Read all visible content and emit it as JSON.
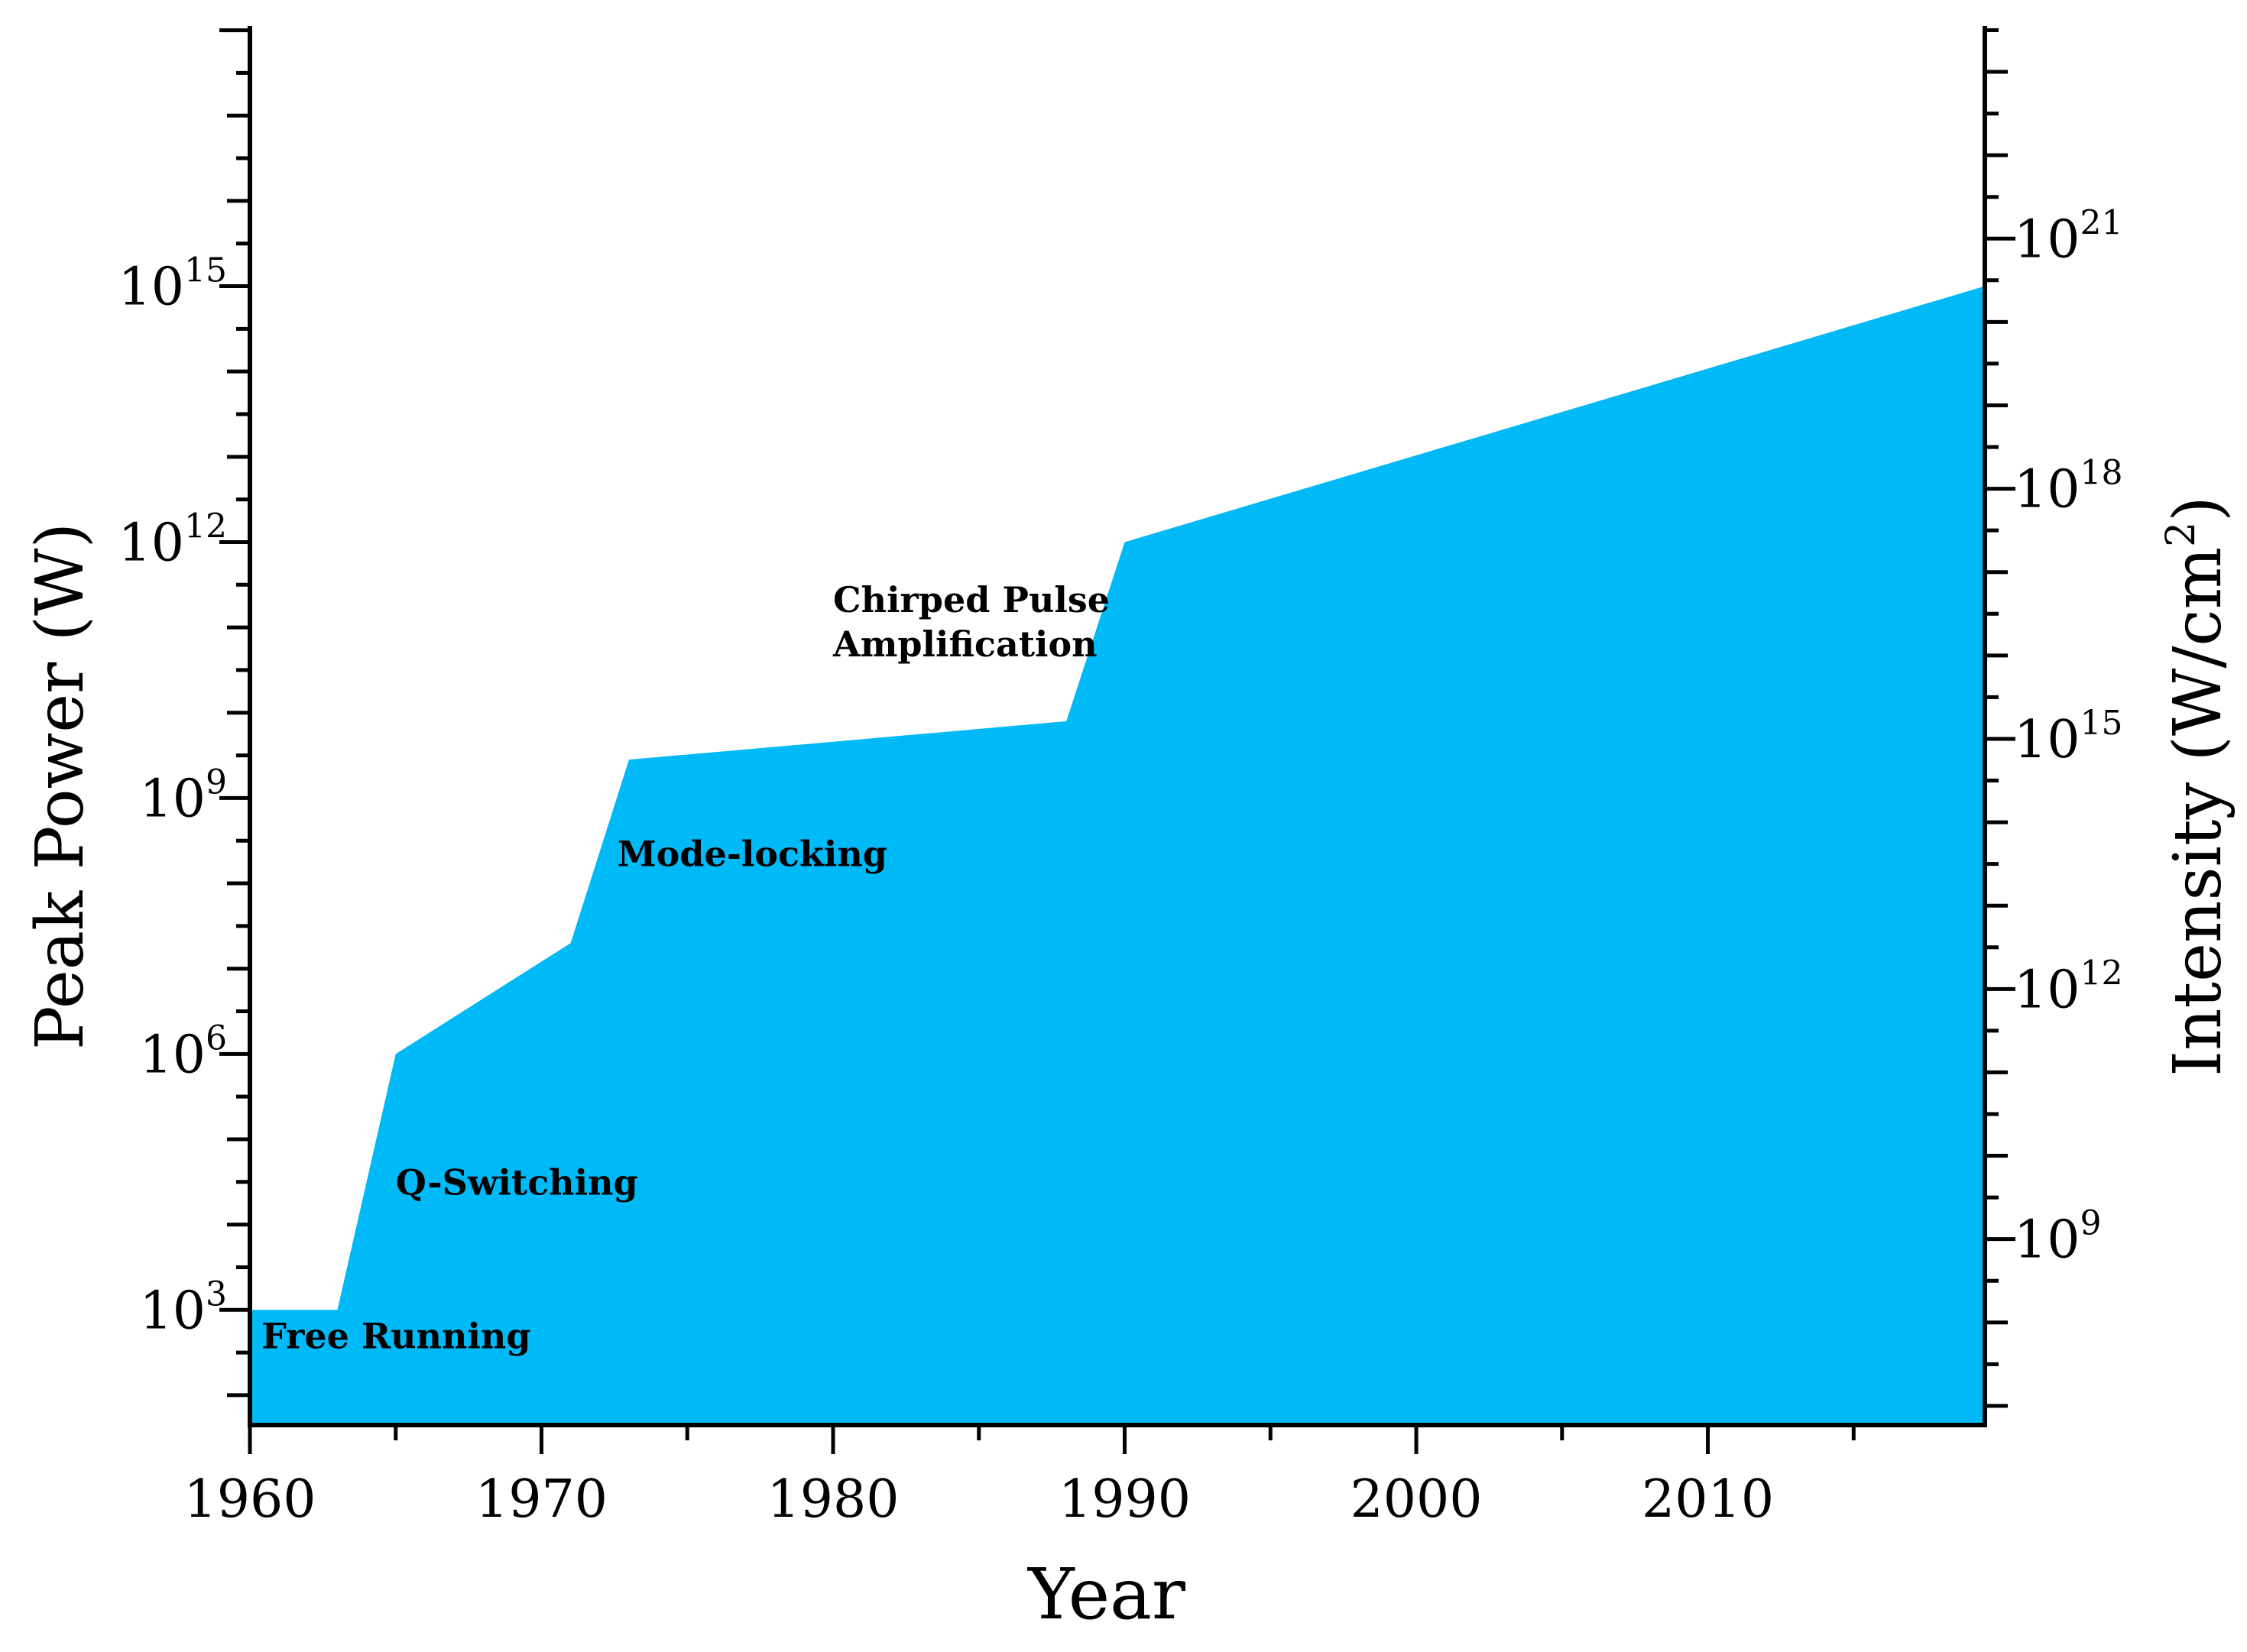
{
  "chart_data": {
    "type": "area",
    "xlabel": "Year",
    "ylabel": "Peak Power (W)",
    "y2label": "Intensity (W/cm²)",
    "y2label_base": "Intensity (W/cm",
    "y2label_sup": "2",
    "y2label_end": ")",
    "xlim": [
      1960,
      2019.5
    ],
    "ylim_log10": [
      1.65,
      18.05
    ],
    "y2lim_log10": [
      6.77,
      23.55
    ],
    "y_scale": "log",
    "fill_color": "#00B9F7",
    "x_ticks": [
      1960,
      1970,
      1980,
      1990,
      2000,
      2010
    ],
    "y_ticks": [
      {
        "base": "10",
        "exp": "3",
        "log10": 3
      },
      {
        "base": "10",
        "exp": "6",
        "log10": 6
      },
      {
        "base": "10",
        "exp": "9",
        "log10": 9
      },
      {
        "base": "10",
        "exp": "12",
        "log10": 12
      },
      {
        "base": "10",
        "exp": "15",
        "log10": 15
      }
    ],
    "y2_ticks": [
      {
        "base": "10",
        "exp": "9",
        "log10": 9
      },
      {
        "base": "10",
        "exp": "12",
        "log10": 12
      },
      {
        "base": "10",
        "exp": "15",
        "log10": 15
      },
      {
        "base": "10",
        "exp": "18",
        "log10": 18
      },
      {
        "base": "10",
        "exp": "21",
        "log10": 21
      }
    ],
    "series": [
      {
        "x": [
          1960,
          1963,
          1965,
          1971,
          1973,
          1988,
          1990,
          2019.5
        ],
        "y_log10": [
          3,
          3,
          6,
          7.3,
          9.45,
          9.9,
          12,
          15
        ]
      }
    ],
    "annotations": [
      {
        "text": "Free Running",
        "x": 1960.4,
        "y_log10": 2.55
      },
      {
        "text": "Q-Switching",
        "x": 1965,
        "y_log10": 4.35
      },
      {
        "text": "Mode-locking",
        "x": 1972.6,
        "y_log10": 8.2
      },
      {
        "text": "Chirped Pulse",
        "x": 1980,
        "y_log10": 11.18
      },
      {
        "text": "Amplification",
        "x": 1980,
        "y_log10": 10.66
      }
    ]
  }
}
